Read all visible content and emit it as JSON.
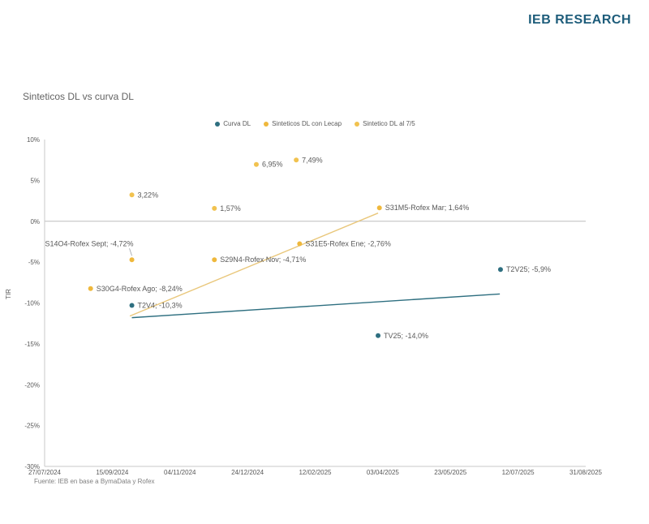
{
  "header": {
    "brand": "IEB RESEARCH"
  },
  "chart_data": {
    "type": "scatter",
    "title": "Sinteticos DL vs curva DL",
    "source": "Fuente: IEB en base a BymaData y Rofex",
    "xlabel": "",
    "ylabel": "TIR",
    "ylim": [
      -30,
      10
    ],
    "grid": "zero-line-only",
    "legend_position": "top-center",
    "y_ticks": [
      "10%",
      "5%",
      "0%",
      "-5%",
      "-10%",
      "-15%",
      "-20%",
      "-25%",
      "-30%"
    ],
    "x_ticks": [
      "27/07/2024",
      "15/09/2024",
      "04/11/2024",
      "24/12/2024",
      "12/02/2025",
      "03/04/2025",
      "23/05/2025",
      "12/07/2025",
      "31/08/2025"
    ],
    "legend": [
      {
        "name": "Curva DL",
        "color": "#2E6F80"
      },
      {
        "name": "Sinteticos DL con Lecap",
        "color": "#EFB83C"
      },
      {
        "name": "Sintetico DL al 7/5",
        "color": "#F1C24F"
      }
    ],
    "series": [
      {
        "name": "Curva DL",
        "color": "#2E6F80",
        "trend": {
          "x1": 1.29,
          "y1": -11.8,
          "x2": 6.73,
          "y2": -8.9,
          "color": "#2E6F80"
        },
        "points": [
          {
            "x": 1.29,
            "y": -10.3,
            "label": "T2V4; -10,3%"
          },
          {
            "x": 4.93,
            "y": -14.0,
            "label": "TV25; -14,0%"
          },
          {
            "x": 6.74,
            "y": -5.9,
            "label": "T2V25; -5,9%"
          }
        ]
      },
      {
        "name": "Sinteticos DL con Lecap",
        "color": "#EFB83C",
        "trend": {
          "x1": 1.26,
          "y1": -11.6,
          "x2": 4.93,
          "y2": 1.0,
          "color": "#E9C77B"
        },
        "points": [
          {
            "x": 0.68,
            "y": -8.24,
            "label": "S30G4-Rofex Ago; -8,24%"
          },
          {
            "x": 1.29,
            "y": -4.72,
            "label": "S14O4-Rofex Sept; -4,72%",
            "callout": true
          },
          {
            "x": 2.51,
            "y": -4.71,
            "label": "S29N4-Rofex Nov; -4,71%"
          },
          {
            "x": 3.77,
            "y": -2.76,
            "label": "S31E5-Rofex Ene; -2,76%"
          },
          {
            "x": 4.95,
            "y": 1.64,
            "label": "S31M5-Rofex Mar; 1,64%"
          }
        ]
      },
      {
        "name": "Sintetico DL al 7/5",
        "color": "#F1C24F",
        "points": [
          {
            "x": 1.29,
            "y": 3.22,
            "label": "3,22%"
          },
          {
            "x": 2.51,
            "y": 1.57,
            "label": "1,57%"
          },
          {
            "x": 3.13,
            "y": 6.95,
            "label": "6,95%"
          },
          {
            "x": 3.72,
            "y": 7.49,
            "label": "7,49%"
          }
        ]
      }
    ]
  }
}
